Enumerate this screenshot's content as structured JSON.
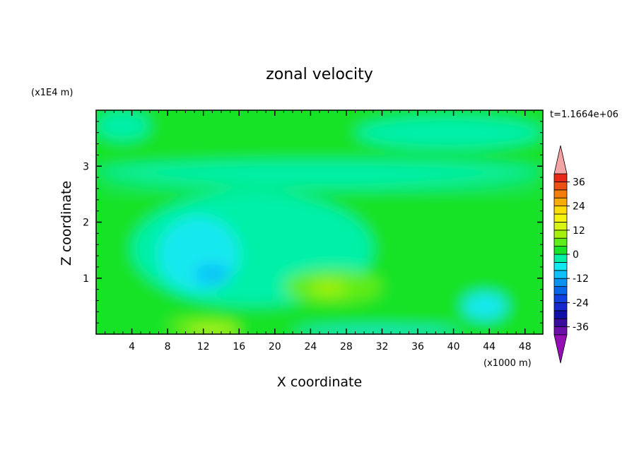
{
  "chart_data": {
    "type": "heatmap",
    "title": "zonal velocity",
    "xlabel": "X coordinate",
    "ylabel": "Z coordinate",
    "x_scale_label": "(x1000 m)",
    "y_scale_label": "(x1E4 m)",
    "time_label": "t=1.1664e+06",
    "xlim": [
      0,
      50
    ],
    "ylim": [
      0,
      4
    ],
    "x_ticks": [
      4,
      8,
      12,
      16,
      20,
      24,
      28,
      32,
      36,
      40,
      44,
      48
    ],
    "y_ticks": [
      1,
      2,
      3
    ],
    "x_tick_labels": [
      "4",
      "8",
      "12",
      "16",
      "20",
      "24",
      "28",
      "32",
      "36",
      "40",
      "44",
      "48"
    ],
    "y_tick_labels": [
      "1",
      "2",
      "3"
    ],
    "colorbar": {
      "levels": [
        -40,
        -36,
        -32,
        -28,
        -24,
        -20,
        -16,
        -12,
        -8,
        -4,
        0,
        4,
        8,
        12,
        16,
        20,
        24,
        28,
        32,
        36,
        40
      ],
      "colors": [
        "#6a0fa8",
        "#3a0c9c",
        "#1010a8",
        "#1428cc",
        "#1040e0",
        "#0a66e8",
        "#0b92f0",
        "#10c0f8",
        "#12e8f0",
        "#00f0a8",
        "#18e228",
        "#60ec18",
        "#a6f010",
        "#d8f414",
        "#f4f410",
        "#fcdc0a",
        "#f8ac0a",
        "#f27c0c",
        "#ec5012",
        "#e82818"
      ],
      "tick_labels": [
        "36",
        "24",
        "12",
        "0",
        "-12",
        "-24",
        "-36"
      ],
      "tick_values": [
        36,
        24,
        12,
        0,
        -12,
        -24,
        -36
      ],
      "under_color": "#9410b4",
      "over_color": "#f4a4a4"
    },
    "regions": [
      {
        "value": 1,
        "x": [
          0,
          50
        ],
        "z": [
          0,
          4
        ]
      },
      {
        "value": -2,
        "x": [
          0,
          50
        ],
        "z": [
          2.58,
          2.68
        ]
      },
      {
        "value": -2,
        "x": [
          0,
          6
        ],
        "z": [
          3.45,
          4.0
        ]
      },
      {
        "value": -2,
        "x": [
          29,
          50
        ],
        "z": [
          3.3,
          3.9
        ]
      },
      {
        "value": -2,
        "x": [
          4,
          31
        ],
        "z": [
          0.5,
          2.55
        ]
      },
      {
        "value": -2,
        "x": [
          0,
          50
        ],
        "z": [
          2.7,
          3.1
        ]
      },
      {
        "value": -6,
        "x": [
          7,
          16
        ],
        "z": [
          0.75,
          2.1
        ]
      },
      {
        "value": -10,
        "x": [
          11,
          15
        ],
        "z": [
          0.9,
          1.25
        ]
      },
      {
        "value": 6,
        "x": [
          21,
          32
        ],
        "z": [
          0.55,
          1.15
        ]
      },
      {
        "value": 10,
        "x": [
          24,
          28
        ],
        "z": [
          0.7,
          0.95
        ]
      },
      {
        "value": 6,
        "x": [
          8,
          16
        ],
        "z": [
          0.0,
          0.3
        ]
      },
      {
        "value": 14,
        "x": [
          10,
          16
        ],
        "z": [
          0.0,
          0.12
        ]
      },
      {
        "value": -6,
        "x": [
          41,
          46
        ],
        "z": [
          0.25,
          0.75
        ]
      },
      {
        "value": -6,
        "x": [
          22,
          41
        ],
        "z": [
          0.0,
          0.12
        ]
      }
    ]
  }
}
